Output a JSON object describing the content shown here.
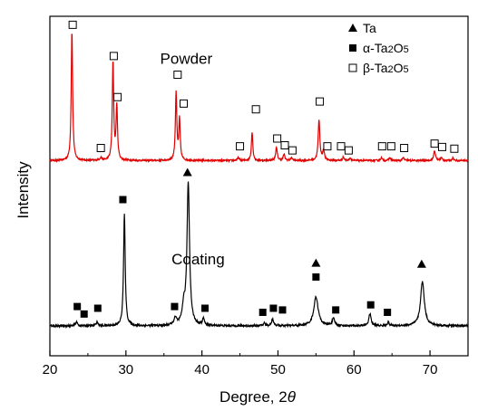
{
  "chart_data": {
    "type": "line",
    "xlabel_main": "Degree, 2",
    "xlabel_symbol": "θ",
    "ylabel": "Intensity",
    "xlim": [
      20,
      75
    ],
    "ylim": [
      0,
      1
    ],
    "x_ticks": [
      20,
      30,
      40,
      50,
      60,
      70
    ],
    "grid": false,
    "y_tick_labels": false,
    "legend": {
      "position": "top-right",
      "entries": [
        {
          "marker": "filled-triangle",
          "label_prefix": "",
          "label_main": "Ta",
          "sub1": "",
          "mid": "",
          "sub2": ""
        },
        {
          "marker": "filled-square",
          "label_prefix": "α-",
          "label_main": "Ta",
          "sub1": "2",
          "mid": "O",
          "sub2": "5"
        },
        {
          "marker": "open-square",
          "label_prefix": "β-",
          "label_main": "Ta",
          "sub1": "2",
          "mid": "O",
          "sub2": "5"
        }
      ]
    },
    "annotations": [
      {
        "id": "powder",
        "text": "Powder",
        "x": 34.5,
        "y": 0.86
      },
      {
        "id": "coating",
        "text": "Coating",
        "x": 36,
        "y": 0.27
      }
    ],
    "series": [
      {
        "id": "powder-curve",
        "color": "#e00000",
        "baseline": 0.575,
        "noise": 0.0025,
        "peaks": [
          {
            "x": 22.9,
            "h": 0.385,
            "w": 0.11
          },
          {
            "x": 26.7,
            "h": 0.008,
            "w": 0.15
          },
          {
            "x": 28.3,
            "h": 0.29,
            "w": 0.11
          },
          {
            "x": 28.8,
            "h": 0.16,
            "w": 0.11
          },
          {
            "x": 36.6,
            "h": 0.2,
            "w": 0.11
          },
          {
            "x": 37.05,
            "h": 0.12,
            "w": 0.11
          },
          {
            "x": 44.8,
            "h": 0.008,
            "w": 0.15
          },
          {
            "x": 46.6,
            "h": 0.085,
            "w": 0.11
          },
          {
            "x": 49.8,
            "h": 0.038,
            "w": 0.13
          },
          {
            "x": 50.8,
            "h": 0.018,
            "w": 0.13
          },
          {
            "x": 51.8,
            "h": 0.008,
            "w": 0.13
          },
          {
            "x": 55.4,
            "h": 0.12,
            "w": 0.13
          },
          {
            "x": 56.0,
            "h": 0.03,
            "w": 0.13
          },
          {
            "x": 58.6,
            "h": 0.01,
            "w": 0.13
          },
          {
            "x": 59.5,
            "h": 0.008,
            "w": 0.13
          },
          {
            "x": 63.6,
            "h": 0.008,
            "w": 0.13
          },
          {
            "x": 64.7,
            "h": 0.008,
            "w": 0.13
          },
          {
            "x": 66.5,
            "h": 0.008,
            "w": 0.13
          },
          {
            "x": 70.6,
            "h": 0.03,
            "w": 0.13
          },
          {
            "x": 71.5,
            "h": 0.008,
            "w": 0.13
          },
          {
            "x": 73.0,
            "h": 0.008,
            "w": 0.13
          }
        ],
        "markers": [
          {
            "shape": "open-square",
            "x": 23.0,
            "y": 0.975
          },
          {
            "shape": "open-square",
            "x": 26.7,
            "y": 0.612
          },
          {
            "shape": "open-square",
            "x": 28.4,
            "y": 0.883
          },
          {
            "shape": "open-square",
            "x": 28.9,
            "y": 0.762
          },
          {
            "shape": "open-square",
            "x": 36.8,
            "y": 0.828
          },
          {
            "shape": "open-square",
            "x": 37.6,
            "y": 0.743
          },
          {
            "shape": "open-square",
            "x": 45.0,
            "y": 0.617
          },
          {
            "shape": "open-square",
            "x": 47.1,
            "y": 0.726
          },
          {
            "shape": "open-square",
            "x": 49.9,
            "y": 0.64
          },
          {
            "shape": "open-square",
            "x": 50.9,
            "y": 0.62
          },
          {
            "shape": "open-square",
            "x": 51.9,
            "y": 0.605
          },
          {
            "shape": "open-square",
            "x": 55.5,
            "y": 0.749
          },
          {
            "shape": "open-square",
            "x": 56.5,
            "y": 0.617
          },
          {
            "shape": "open-square",
            "x": 58.3,
            "y": 0.617
          },
          {
            "shape": "open-square",
            "x": 59.3,
            "y": 0.605
          },
          {
            "shape": "open-square",
            "x": 63.7,
            "y": 0.617
          },
          {
            "shape": "open-square",
            "x": 64.9,
            "y": 0.617
          },
          {
            "shape": "open-square",
            "x": 66.6,
            "y": 0.612
          },
          {
            "shape": "open-square",
            "x": 70.6,
            "y": 0.625
          },
          {
            "shape": "open-square",
            "x": 71.6,
            "y": 0.615
          },
          {
            "shape": "open-square",
            "x": 73.2,
            "y": 0.61
          }
        ]
      },
      {
        "id": "coating-curve",
        "color": "#000000",
        "baseline": 0.088,
        "noise": 0.003,
        "peaks": [
          {
            "x": 23.5,
            "h": 0.012,
            "w": 0.14
          },
          {
            "x": 26.2,
            "h": 0.012,
            "w": 0.14
          },
          {
            "x": 29.8,
            "h": 0.33,
            "w": 0.13
          },
          {
            "x": 36.5,
            "h": 0.02,
            "w": 0.22
          },
          {
            "x": 37.6,
            "h": 0.05,
            "w": 0.22
          },
          {
            "x": 38.2,
            "h": 0.42,
            "w": 0.2
          },
          {
            "x": 40.2,
            "h": 0.02,
            "w": 0.14
          },
          {
            "x": 48.2,
            "h": 0.008,
            "w": 0.14
          },
          {
            "x": 49.3,
            "h": 0.02,
            "w": 0.16
          },
          {
            "x": 55.0,
            "h": 0.085,
            "w": 0.35
          },
          {
            "x": 57.3,
            "h": 0.02,
            "w": 0.2
          },
          {
            "x": 62.1,
            "h": 0.035,
            "w": 0.18
          },
          {
            "x": 64.5,
            "h": 0.01,
            "w": 0.16
          },
          {
            "x": 69.0,
            "h": 0.13,
            "w": 0.3
          }
        ],
        "markers": [
          {
            "shape": "filled-square",
            "x": 23.6,
            "y": 0.145
          },
          {
            "shape": "filled-square",
            "x": 24.5,
            "y": 0.123
          },
          {
            "shape": "filled-square",
            "x": 26.3,
            "y": 0.14
          },
          {
            "shape": "filled-square",
            "x": 29.6,
            "y": 0.46
          },
          {
            "shape": "filled-square",
            "x": 36.4,
            "y": 0.145
          },
          {
            "shape": "filled-triangle",
            "x": 38.1,
            "y": 0.54
          },
          {
            "shape": "filled-square",
            "x": 40.4,
            "y": 0.14
          },
          {
            "shape": "filled-square",
            "x": 48.0,
            "y": 0.128
          },
          {
            "shape": "filled-square",
            "x": 49.4,
            "y": 0.14
          },
          {
            "shape": "filled-square",
            "x": 50.6,
            "y": 0.135
          },
          {
            "shape": "filled-square",
            "x": 55.0,
            "y": 0.232
          },
          {
            "shape": "filled-triangle",
            "x": 55.0,
            "y": 0.273
          },
          {
            "shape": "filled-square",
            "x": 57.6,
            "y": 0.135
          },
          {
            "shape": "filled-square",
            "x": 62.2,
            "y": 0.15
          },
          {
            "shape": "filled-square",
            "x": 64.4,
            "y": 0.128
          },
          {
            "shape": "filled-triangle",
            "x": 68.9,
            "y": 0.27
          }
        ]
      }
    ]
  }
}
